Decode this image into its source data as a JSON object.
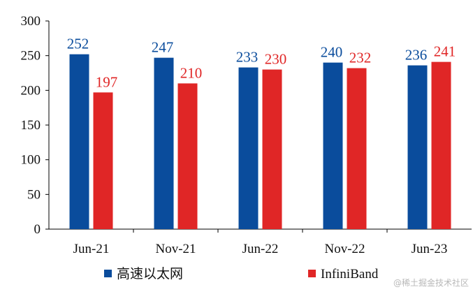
{
  "chart_data": {
    "type": "bar",
    "categories": [
      "Jun-21",
      "Nov-21",
      "Jun-22",
      "Nov-22",
      "Jun-23"
    ],
    "series": [
      {
        "name": "高速以太网",
        "color": "#0a4c9c",
        "values": [
          252,
          247,
          233,
          240,
          236
        ]
      },
      {
        "name": "InfiniBand",
        "color": "#e02626",
        "values": [
          197,
          210,
          230,
          232,
          241
        ]
      }
    ],
    "ylim": [
      0,
      300
    ],
    "yticks": [
      0,
      50,
      100,
      150,
      200,
      250,
      300
    ],
    "grid": false,
    "legend_position": "bottom",
    "data_labels": true
  },
  "watermark": "@稀土掘金技术社区"
}
